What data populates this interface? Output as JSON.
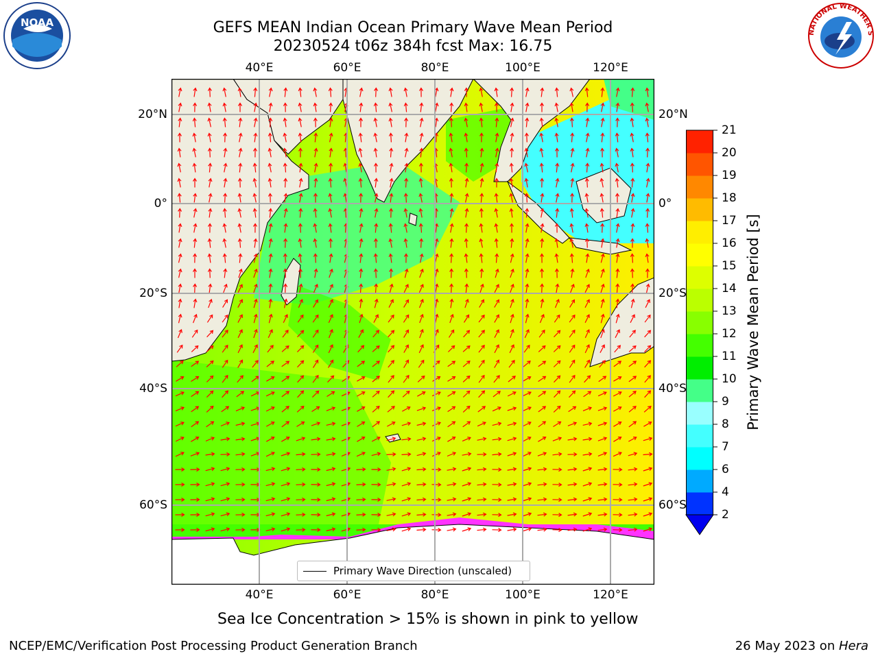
{
  "title": {
    "line1": "GEFS MEAN Indian Ocean Primary Wave Mean Period",
    "line2": "20230524 t06z 384h fcst   Max: 16.75"
  },
  "logos": {
    "left": {
      "icon": "noaa-logo-icon",
      "text": "NOAA"
    },
    "right": {
      "icon": "national-weather-service-logo-icon",
      "text": "NATIONAL WEATHER SERVICE"
    }
  },
  "map": {
    "lon_labels": [
      "40°E",
      "60°E",
      "80°E",
      "100°E",
      "120°E"
    ],
    "lat_labels": [
      "20°N",
      "0°",
      "20°S",
      "40°S",
      "60°S"
    ],
    "land_color": "#efeddf",
    "ice_color": "#ff33ff",
    "arrow_color": "#ff0000",
    "grid_color": "#aaaaaa"
  },
  "colorbar": {
    "label": "Primary Wave Mean Period [s]",
    "ticks": [
      "2",
      "4",
      "6",
      "7",
      "8",
      "9",
      "10",
      "11",
      "12",
      "13",
      "14",
      "15",
      "16",
      "17",
      "18",
      "19",
      "20",
      "21"
    ],
    "tick_values": [
      2,
      4,
      6,
      7,
      8,
      9,
      10,
      11,
      12,
      13,
      14,
      15,
      16,
      17,
      18,
      19,
      20,
      21
    ],
    "colors": [
      "#0033ff",
      "#00aaff",
      "#00ffff",
      "#44ffff",
      "#99ffff",
      "#44ff88",
      "#00ee00",
      "#44ff00",
      "#88ff00",
      "#bbff00",
      "#ddff00",
      "#ffff00",
      "#ffee00",
      "#ffbb00",
      "#ff8800",
      "#ff5500",
      "#ff2200"
    ],
    "under_color": "#0000ee"
  },
  "legend": {
    "label": "Primary Wave Direction (unscaled)"
  },
  "note": "Sea Ice Concentration > 15% is shown in pink to yellow",
  "footer": {
    "left": "NCEP/EMC/Verification Post Processing Product Generation Branch",
    "right_prefix": "26 May 2023 on ",
    "right_machine": "Hera"
  }
}
